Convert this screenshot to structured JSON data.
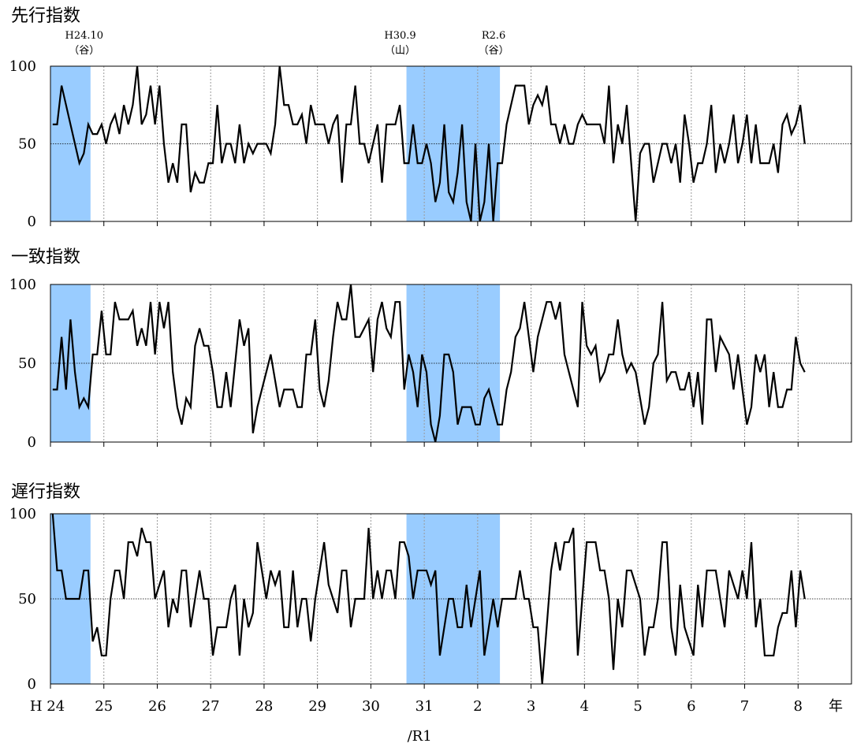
{
  "chart_data": [
    {
      "type": "line",
      "title": "先行指数",
      "ylim": [
        0,
        100
      ],
      "yticks": [
        0,
        50,
        100
      ],
      "reference_line": 50,
      "grid": "vertical-dotted",
      "x_axis": {
        "unit": "年",
        "start": "H24.1",
        "ticks": [
          {
            "label": "H 24",
            "date": "H24.1"
          },
          {
            "label": "25",
            "date": "H25.1"
          },
          {
            "label": "26",
            "date": "H26.1"
          },
          {
            "label": "27",
            "date": "H27.1"
          },
          {
            "label": "28",
            "date": "H28.1"
          },
          {
            "label": "29",
            "date": "H29.1"
          },
          {
            "label": "30",
            "date": "H30.1"
          },
          {
            "label": "31",
            "date": "H31.1"
          },
          {
            "label": "2",
            "date": "R2.1"
          },
          {
            "label": "3",
            "date": "R3.1"
          },
          {
            "label": "4",
            "date": "R4.1"
          },
          {
            "label": "5",
            "date": "R5.1"
          },
          {
            "label": "6",
            "date": "R6.1"
          },
          {
            "label": "7",
            "date": "R7.1"
          },
          {
            "label": "8",
            "date": "R8.1"
          }
        ],
        "era_note": "/R1"
      },
      "shaded_periods": [
        {
          "from": "H24.1",
          "to": "H24.10",
          "end_label": "H24.10",
          "end_type": "（谷）"
        },
        {
          "from": "H30.9",
          "to": "R2.6",
          "start_label": "H30.9",
          "start_type": "（山）",
          "end_label": "R2.6",
          "end_type": "（谷）"
        }
      ],
      "series": [
        {
          "values": [
            62.5,
            62.5,
            87.5,
            75,
            62.5,
            50,
            37.5,
            43.8,
            62.5,
            56.3,
            56.3,
            62.5,
            50,
            62.5,
            68.8,
            56.3,
            75,
            62.5,
            75,
            100,
            62.5,
            68.8,
            87.5,
            62.5,
            87.5,
            50,
            25,
            37.5,
            25,
            62.5,
            62.5,
            18.8,
            31.3,
            25,
            25,
            37.5,
            37.5,
            75,
            37.5,
            50,
            50,
            37.5,
            62.5,
            37.5,
            50,
            43.8,
            50,
            50,
            50,
            43.8,
            62.5,
            100,
            75,
            75,
            62.5,
            62.5,
            68.8,
            50,
            75,
            62.5,
            62.5,
            62.5,
            50,
            62.5,
            68.8,
            25,
            62.5,
            62.5,
            87.5,
            50,
            50,
            37.5,
            50,
            62.5,
            25,
            62.5,
            62.5,
            62.5,
            75,
            37.5,
            37.5,
            62.5,
            37.5,
            37.5,
            50,
            37.5,
            12.5,
            25,
            62.5,
            18.8,
            12.5,
            31.3,
            62.5,
            12.5,
            0,
            50,
            0,
            12.5,
            50,
            0,
            37.5,
            37.5,
            62.5,
            75,
            87.5,
            87.5,
            87.5,
            62.5,
            75,
            81.3,
            75,
            87.5,
            62.5,
            62.5,
            50,
            62.5,
            50,
            50,
            62.5,
            68.8,
            62.5,
            62.5,
            62.5,
            62.5,
            50,
            87.5,
            37.5,
            62.5,
            50,
            75,
            37.5,
            0,
            43.8,
            50,
            50,
            25,
            37.5,
            50,
            50,
            37.5,
            50,
            25,
            68.8,
            50,
            25,
            37.5,
            37.5,
            50,
            75,
            31.3,
            50,
            37.5,
            50,
            68.8,
            37.5,
            50,
            68.8,
            37.5,
            62.5,
            37.5,
            37.5,
            37.5,
            50,
            31.3,
            62.5,
            68.8,
            56.3,
            62.5,
            75,
            50
          ]
        }
      ]
    },
    {
      "type": "line",
      "title": "一致指数",
      "ylim": [
        0,
        100
      ],
      "yticks": [
        0,
        50,
        100
      ],
      "reference_line": 50,
      "grid": "vertical-dotted",
      "shaded_periods": [
        {
          "from": "H24.1",
          "to": "H24.10"
        },
        {
          "from": "H30.9",
          "to": "R2.6"
        }
      ],
      "series": [
        {
          "values": [
            33.3,
            33.3,
            66.7,
            33.3,
            77.8,
            44.4,
            22.2,
            27.8,
            22.2,
            55.6,
            55.6,
            83.3,
            55.6,
            55.6,
            88.9,
            77.8,
            77.8,
            77.8,
            83.3,
            61.1,
            72.2,
            61.1,
            88.9,
            55.6,
            88.9,
            72.2,
            88.9,
            44.4,
            22.2,
            11.1,
            27.8,
            22.2,
            61.1,
            72.2,
            61.1,
            61.1,
            44.4,
            22.2,
            22.2,
            44.4,
            22.2,
            50,
            77.8,
            61.1,
            72.2,
            5.6,
            22.2,
            33.3,
            44.4,
            55.6,
            38.9,
            22.2,
            33.3,
            33.3,
            33.3,
            22.2,
            22.2,
            55.6,
            55.6,
            77.8,
            33.3,
            22.2,
            38.9,
            66.7,
            88.9,
            77.8,
            77.8,
            100,
            66.7,
            66.7,
            72.2,
            77.8,
            44.4,
            77.8,
            88.9,
            72.2,
            66.7,
            88.9,
            88.9,
            33.3,
            55.6,
            44.4,
            22.2,
            55.6,
            44.4,
            11.1,
            0,
            16.7,
            55.6,
            55.6,
            44.4,
            11.1,
            22.2,
            22.2,
            22.2,
            11.1,
            11.1,
            27.8,
            33.3,
            22.2,
            11.1,
            11.1,
            33.3,
            44.4,
            66.7,
            72.2,
            88.9,
            66.7,
            44.4,
            66.7,
            77.8,
            88.9,
            88.9,
            77.8,
            88.9,
            55.6,
            44.4,
            33.3,
            22.2,
            88.9,
            61.1,
            55.6,
            61.1,
            38.9,
            44.4,
            55.6,
            55.6,
            77.8,
            55.6,
            44.4,
            50,
            44.4,
            27.8,
            11.1,
            22.2,
            50,
            55.6,
            88.9,
            38.9,
            44.4,
            44.4,
            33.3,
            33.3,
            44.4,
            22.2,
            44.4,
            11.1,
            77.8,
            77.8,
            44.4,
            66.7,
            61.1,
            55.6,
            33.3,
            55.6,
            33.3,
            11.1,
            22.2,
            55.6,
            44.4,
            55.6,
            22.2,
            44.4,
            22.2,
            22.2,
            33.3,
            33.3,
            66.7,
            50,
            44.4
          ]
        }
      ]
    },
    {
      "type": "line",
      "title": "遅行指数",
      "ylim": [
        0,
        100
      ],
      "yticks": [
        0,
        50,
        100
      ],
      "reference_line": 50,
      "grid": "vertical-dotted",
      "shaded_periods": [
        {
          "from": "H24.1",
          "to": "H24.10"
        },
        {
          "from": "H30.9",
          "to": "R2.6"
        }
      ],
      "series": [
        {
          "values": [
            100,
            66.7,
            66.7,
            50,
            50,
            50,
            50,
            66.7,
            66.7,
            25,
            33.3,
            16.7,
            16.7,
            50,
            66.7,
            66.7,
            50,
            83.3,
            83.3,
            75,
            91.7,
            83.3,
            83.3,
            50,
            58.3,
            66.7,
            33.3,
            50,
            41.7,
            66.7,
            66.7,
            33.3,
            50,
            66.7,
            50,
            50,
            16.7,
            33.3,
            33.3,
            33.3,
            50,
            58.3,
            16.7,
            50,
            33.3,
            41.7,
            83.3,
            66.7,
            50,
            66.7,
            58.3,
            66.7,
            33.3,
            33.3,
            66.7,
            33.3,
            50,
            50,
            25,
            50,
            66.7,
            83.3,
            58.3,
            50,
            41.7,
            66.7,
            66.7,
            33.3,
            50,
            50,
            50,
            91.7,
            50,
            66.7,
            50,
            66.7,
            66.7,
            50,
            83.3,
            83.3,
            75,
            50,
            66.7,
            66.7,
            66.7,
            58.3,
            66.7,
            16.7,
            33.3,
            50,
            50,
            33.3,
            33.3,
            58.3,
            33.3,
            50,
            66.7,
            16.7,
            33.3,
            50,
            33.3,
            50,
            50,
            50,
            50,
            66.7,
            50,
            50,
            33.3,
            33.3,
            0,
            33.3,
            66.7,
            83.3,
            66.7,
            83.3,
            83.3,
            91.7,
            16.7,
            50,
            83.3,
            83.3,
            83.3,
            66.7,
            66.7,
            50,
            8.3,
            50,
            33.3,
            66.7,
            66.7,
            58.3,
            50,
            16.7,
            33.3,
            33.3,
            50,
            83.3,
            83.3,
            33.3,
            16.7,
            58.3,
            33.3,
            25,
            16.7,
            58.3,
            33.3,
            66.7,
            66.7,
            66.7,
            50,
            33.3,
            66.7,
            58.3,
            50,
            66.7,
            50,
            83.3,
            33.3,
            50,
            16.7,
            16.7,
            16.7,
            33.3,
            41.7,
            41.7,
            66.7,
            33.3,
            66.7,
            50
          ]
        }
      ]
    }
  ]
}
